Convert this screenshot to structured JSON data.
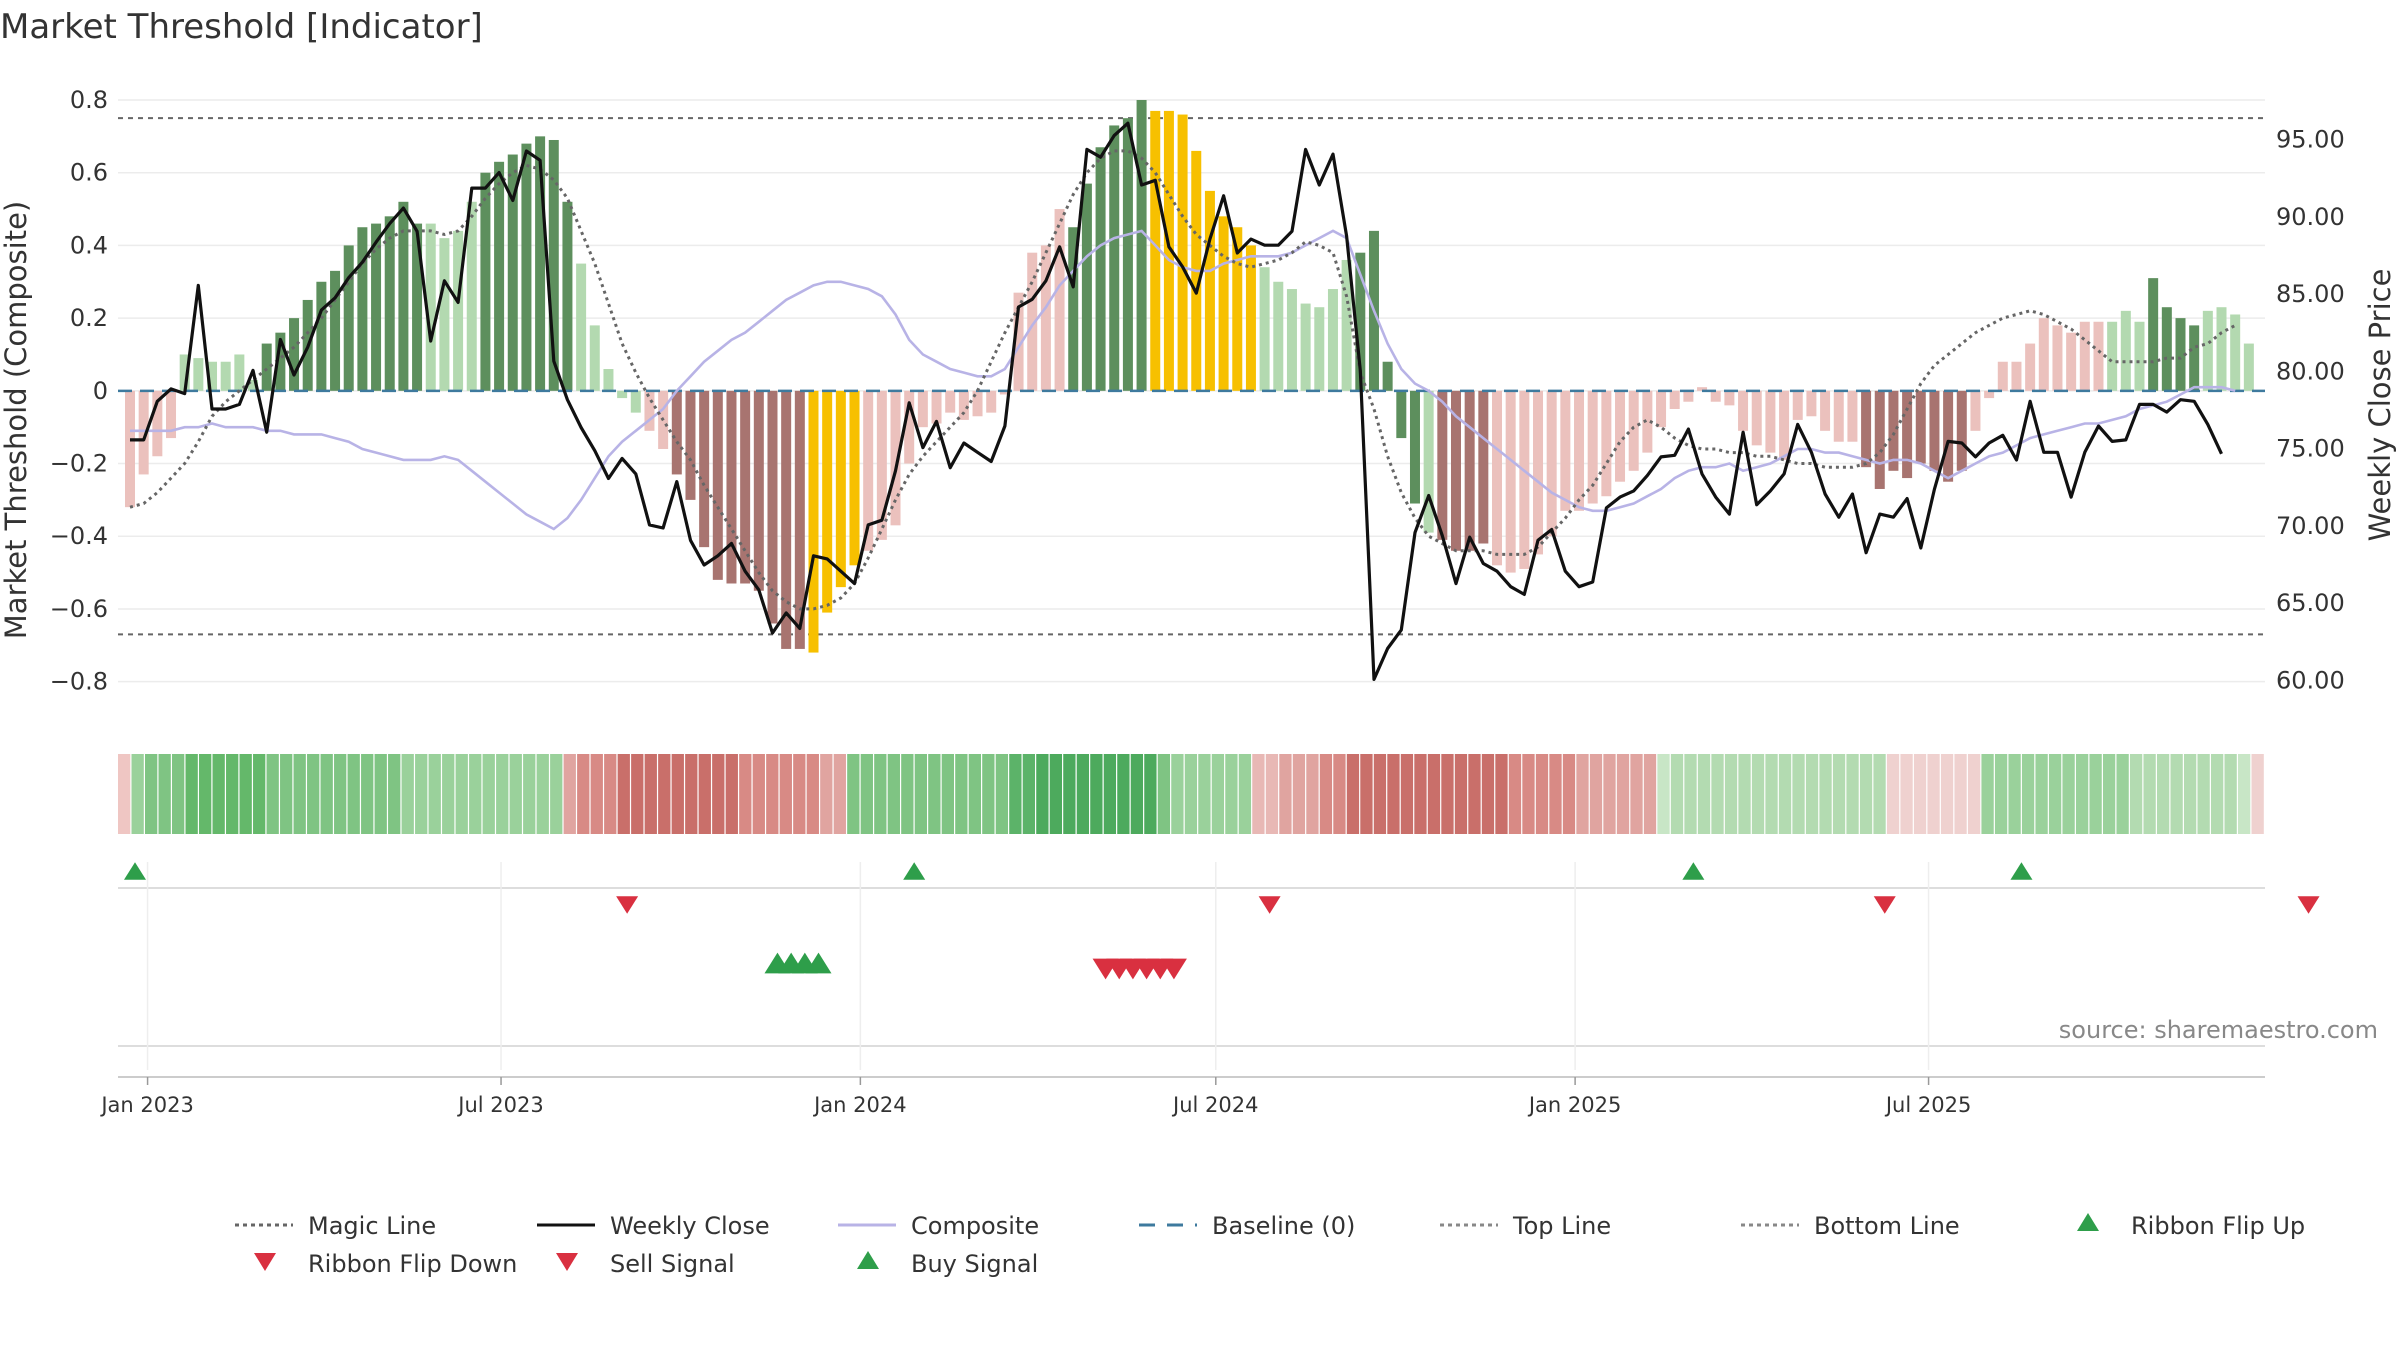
{
  "chart_data": {
    "type": "bar",
    "title": "Market Threshold [Indicator]",
    "ylabel_left": "Market Threshold (Composite)",
    "ylabel_right": "Weekly Close Price",
    "source": "source: sharemaestro.com",
    "start_date": "2022-12-23",
    "interval_days": 7,
    "ylim_left": [
      -0.9,
      0.8
    ],
    "ylim_right": [
      57.5,
      97.5
    ],
    "y_ticks_left": [
      "0.8",
      "0.6",
      "0.4",
      "0.2",
      "0",
      "−0.2",
      "−0.4",
      "−0.6",
      "−0.8"
    ],
    "y_ticks_right": [
      "95.00",
      "90.00",
      "85.00",
      "80.00",
      "75.00",
      "70.00",
      "65.00",
      "60.00"
    ],
    "x_ticks": [
      {
        "date": "2023-01-01",
        "label": "Jan 2023"
      },
      {
        "date": "2023-07-01",
        "label": "Jul 2023"
      },
      {
        "date": "2024-01-01",
        "label": "Jan 2024"
      },
      {
        "date": "2024-07-01",
        "label": "Jul 2024"
      },
      {
        "date": "2025-01-01",
        "label": "Jan 2025"
      },
      {
        "date": "2025-07-01",
        "label": "Jul 2025"
      }
    ],
    "top_line": 0.75,
    "bottom_line": -0.67,
    "baseline": 0,
    "colors": {
      "strong_green": "#5d8f5d",
      "light_green": "#b3d9b0",
      "strong_red": "#a87470",
      "light_red": "#ebc1bd",
      "gold": "#f7c000",
      "weekly_close": "#111111",
      "composite": "#b8b3e6",
      "magic_line": "#666666",
      "baseline": "#3e7a9e",
      "threshold": "#666666",
      "buy": "#2e9e4a",
      "sell": "#d93040"
    },
    "legend": [
      {
        "label": "Magic Line",
        "style": "dotted",
        "color": "#666666"
      },
      {
        "label": "Weekly Close",
        "style": "solid",
        "color": "#111111"
      },
      {
        "label": "Composite",
        "style": "solid",
        "color": "#b8b3e6"
      },
      {
        "label": "Baseline (0)",
        "style": "dashed",
        "color": "#3e7a9e"
      },
      {
        "label": "Top Line",
        "style": "dotted",
        "color": "#888888"
      },
      {
        "label": "Bottom Line",
        "style": "dotted",
        "color": "#888888"
      },
      {
        "label": "Ribbon Flip Up",
        "style": "triangle-up",
        "color": "#2e9e4a"
      },
      {
        "label": "Ribbon Flip Down",
        "style": "triangle-down",
        "color": "#d93040"
      },
      {
        "label": "Sell Signal",
        "style": "triangle-down",
        "color": "#d93040"
      },
      {
        "label": "Buy Signal",
        "style": "triangle-up",
        "color": "#2e9e4a"
      }
    ],
    "threshold_values": [
      -0.32,
      -0.23,
      -0.18,
      -0.13,
      0.1,
      0.09,
      0.08,
      0.08,
      0.1,
      0.03,
      0.13,
      0.16,
      0.2,
      0.25,
      0.3,
      0.33,
      0.4,
      0.45,
      0.46,
      0.48,
      0.52,
      0.46,
      0.46,
      0.42,
      0.44,
      0.52,
      0.6,
      0.63,
      0.65,
      0.68,
      0.7,
      0.69,
      0.52,
      0.35,
      0.18,
      0.06,
      -0.02,
      -0.06,
      -0.11,
      -0.16,
      -0.23,
      -0.3,
      -0.43,
      -0.52,
      -0.53,
      -0.53,
      -0.55,
      -0.64,
      -0.71,
      -0.71,
      -0.72,
      -0.61,
      -0.54,
      -0.48,
      -0.44,
      -0.41,
      -0.37,
      -0.2,
      -0.1,
      -0.09,
      -0.06,
      -0.08,
      -0.07,
      -0.06,
      -0.01,
      0.27,
      0.38,
      0.4,
      0.5,
      0.45,
      0.57,
      0.67,
      0.73,
      0.75,
      0.8,
      0.77,
      0.77,
      0.76,
      0.66,
      0.55,
      0.48,
      0.45,
      0.4,
      0.34,
      0.3,
      0.28,
      0.24,
      0.23,
      0.28,
      0.36,
      0.38,
      0.44,
      0.08,
      -0.13,
      -0.31,
      -0.39,
      -0.41,
      -0.44,
      -0.44,
      -0.42,
      -0.48,
      -0.5,
      -0.49,
      -0.45,
      -0.4,
      -0.33,
      -0.33,
      -0.31,
      -0.29,
      -0.25,
      -0.22,
      -0.17,
      -0.1,
      -0.05,
      -0.03,
      0.01,
      -0.03,
      -0.04,
      -0.11,
      -0.15,
      -0.17,
      -0.19,
      -0.08,
      -0.07,
      -0.11,
      -0.14,
      -0.14,
      -0.21,
      -0.27,
      -0.22,
      -0.24,
      -0.2,
      -0.22,
      -0.25,
      -0.22,
      -0.11,
      -0.02,
      0.08,
      0.08,
      0.13,
      0.2,
      0.18,
      0.16,
      0.19,
      0.19,
      0.19,
      0.22,
      0.19,
      0.31,
      0.23,
      0.2,
      0.18,
      0.22,
      0.23,
      0.21,
      0.13
    ],
    "threshold_colors": "RRRRLLLLLLGGGGGGGGGGGGLLLLGGGGGGGLLLLLRRRRRRRRRRRRYYYYRRRRRRRRRRRRRRRGGGGGGYYYYYYYYLLLLLLLGGGGGLRRRRRRRRRRRRRRRRRRRRRRRRRRRRRRRRRRRRRRRRRRRRRRRRRLLLGGGGLLLLGGGLLLLG",
    "weekly_close": [
      75.5,
      75.5,
      78,
      78.8,
      78.5,
      85.5,
      77.5,
      77.5,
      77.8,
      80,
      76,
      82,
      79.7,
      81.5,
      83.9,
      84.7,
      86,
      87,
      88.3,
      89.5,
      90.5,
      89,
      81.9,
      85.8,
      84.4,
      91.8,
      91.8,
      92.8,
      91,
      94.2,
      93.6,
      80.6,
      78.1,
      76.3,
      74.8,
      73,
      74.3,
      73.3,
      70,
      69.8,
      72.8,
      69,
      67.4,
      68,
      68.8,
      67,
      65.8,
      63,
      64.3,
      63.3,
      68,
      67.8,
      67,
      66.2,
      70,
      70.3,
      73.5,
      77.9,
      75,
      76.7,
      73.7,
      75.3,
      74.7,
      74.1,
      76.4,
      84.1,
      84.6,
      85.8,
      88,
      85.4,
      94.3,
      93.8,
      95.2,
      96,
      92,
      92.3,
      88,
      86.7,
      85,
      88.5,
      91.3,
      87.6,
      88.5,
      88.1,
      88.1,
      89,
      94.3,
      92,
      94,
      88.7,
      80,
      60,
      62,
      63.2,
      69.5,
      71.9,
      69.3,
      66.2,
      69.2,
      67.5,
      67,
      66,
      65.5,
      69,
      69.7,
      67,
      66,
      66.3,
      71.1,
      71.8,
      72.2,
      73.2,
      74.4,
      74.5,
      76.2,
      73.3,
      71.8,
      70.7,
      76,
      71.3,
      72.2,
      73.3,
      76.5,
      74.7,
      72,
      70.5,
      72,
      68.2,
      70.7,
      70.5,
      71.7,
      68.5,
      72.3,
      75.4,
      75.3,
      74.4,
      75.3,
      75.8,
      74.2,
      78,
      74.7,
      74.7,
      71.8,
      74.7,
      76.4,
      75.4,
      75.5,
      77.8,
      77.8,
      77.3,
      78.1,
      78,
      76.5,
      74.6
    ],
    "composite": [
      -0.11,
      -0.11,
      -0.11,
      -0.11,
      -0.1,
      -0.1,
      -0.09,
      -0.1,
      -0.1,
      -0.1,
      -0.11,
      -0.11,
      -0.12,
      -0.12,
      -0.12,
      -0.13,
      -0.14,
      -0.16,
      -0.17,
      -0.18,
      -0.19,
      -0.19,
      -0.19,
      -0.18,
      -0.19,
      -0.22,
      -0.25,
      -0.28,
      -0.31,
      -0.34,
      -0.36,
      -0.38,
      -0.35,
      -0.3,
      -0.24,
      -0.18,
      -0.14,
      -0.11,
      -0.08,
      -0.05,
      0.0,
      0.04,
      0.08,
      0.11,
      0.14,
      0.16,
      0.19,
      0.22,
      0.25,
      0.27,
      0.29,
      0.3,
      0.3,
      0.29,
      0.28,
      0.26,
      0.21,
      0.14,
      0.1,
      0.08,
      0.06,
      0.05,
      0.04,
      0.04,
      0.06,
      0.12,
      0.18,
      0.23,
      0.29,
      0.33,
      0.37,
      0.4,
      0.42,
      0.43,
      0.44,
      0.4,
      0.36,
      0.34,
      0.33,
      0.33,
      0.35,
      0.36,
      0.37,
      0.37,
      0.37,
      0.38,
      0.4,
      0.42,
      0.44,
      0.42,
      0.32,
      0.22,
      0.13,
      0.06,
      0.02,
      0.0,
      -0.03,
      -0.07,
      -0.1,
      -0.13,
      -0.16,
      -0.19,
      -0.22,
      -0.25,
      -0.28,
      -0.3,
      -0.32,
      -0.33,
      -0.33,
      -0.32,
      -0.31,
      -0.29,
      -0.27,
      -0.24,
      -0.22,
      -0.21,
      -0.21,
      -0.2,
      -0.22,
      -0.21,
      -0.2,
      -0.18,
      -0.16,
      -0.16,
      -0.17,
      -0.17,
      -0.18,
      -0.19,
      -0.2,
      -0.19,
      -0.19,
      -0.2,
      -0.22,
      -0.24,
      -0.22,
      -0.2,
      -0.18,
      -0.17,
      -0.15,
      -0.13,
      -0.12,
      -0.11,
      -0.1,
      -0.09,
      -0.09,
      -0.08,
      -0.07,
      -0.05,
      -0.04,
      -0.03,
      -0.01,
      0.01,
      0.01,
      0.01,
      0.0
    ],
    "magic_line": [
      -0.32,
      -0.31,
      -0.28,
      -0.24,
      -0.2,
      -0.14,
      -0.07,
      -0.03,
      0.0,
      0.03,
      0.06,
      0.09,
      0.12,
      0.16,
      0.2,
      0.25,
      0.3,
      0.35,
      0.39,
      0.42,
      0.44,
      0.44,
      0.44,
      0.43,
      0.44,
      0.48,
      0.53,
      0.57,
      0.6,
      0.62,
      0.61,
      0.58,
      0.53,
      0.44,
      0.35,
      0.24,
      0.13,
      0.05,
      -0.02,
      -0.08,
      -0.14,
      -0.19,
      -0.26,
      -0.32,
      -0.38,
      -0.44,
      -0.5,
      -0.55,
      -0.58,
      -0.6,
      -0.6,
      -0.59,
      -0.57,
      -0.53,
      -0.46,
      -0.38,
      -0.3,
      -0.23,
      -0.18,
      -0.14,
      -0.1,
      -0.06,
      0.0,
      0.08,
      0.16,
      0.23,
      0.3,
      0.38,
      0.46,
      0.54,
      0.6,
      0.64,
      0.66,
      0.66,
      0.64,
      0.6,
      0.54,
      0.48,
      0.43,
      0.4,
      0.37,
      0.35,
      0.34,
      0.35,
      0.36,
      0.38,
      0.41,
      0.4,
      0.38,
      0.26,
      0.05,
      -0.05,
      -0.18,
      -0.28,
      -0.35,
      -0.4,
      -0.42,
      -0.44,
      -0.44,
      -0.44,
      -0.45,
      -0.45,
      -0.45,
      -0.43,
      -0.39,
      -0.35,
      -0.3,
      -0.26,
      -0.2,
      -0.14,
      -0.1,
      -0.08,
      -0.1,
      -0.13,
      -0.15,
      -0.16,
      -0.16,
      -0.17,
      -0.17,
      -0.18,
      -0.18,
      -0.19,
      -0.2,
      -0.2,
      -0.21,
      -0.21,
      -0.21,
      -0.2,
      -0.17,
      -0.12,
      -0.05,
      0.02,
      0.07,
      0.1,
      0.13,
      0.16,
      0.18,
      0.2,
      0.21,
      0.22,
      0.21,
      0.19,
      0.17,
      0.14,
      0.11,
      0.08,
      0.08,
      0.08,
      0.08,
      0.09,
      0.09,
      0.12,
      0.13,
      0.16,
      0.18
    ],
    "ribbon_colors": [
      "#efc6c3",
      "#9ad19b",
      "#7fc483",
      "#7fc483",
      "#7fc483",
      "#64b86a",
      "#64b86a",
      "#64b86a",
      "#64b86a",
      "#64b86a",
      "#64b86a",
      "#7fc483",
      "#7fc483",
      "#7fc483",
      "#7fc483",
      "#7fc483",
      "#7fc483",
      "#7fc483",
      "#7fc483",
      "#7fc483",
      "#7fc483",
      "#9ad19b",
      "#9ad19b",
      "#9ad19b",
      "#9ad19b",
      "#9ad19b",
      "#9ad19b",
      "#9ad19b",
      "#9ad19b",
      "#9ad19b",
      "#9ad19b",
      "#9ad19b",
      "#9ad19b",
      "#e0a4a0",
      "#d88a85",
      "#d88a85",
      "#d88a85",
      "#c96f6a",
      "#c96f6a",
      "#c96f6a",
      "#c96f6a",
      "#c96f6a",
      "#c96f6a",
      "#c96f6a",
      "#c96f6a",
      "#c96f6a",
      "#d88a85",
      "#d88a85",
      "#d88a85",
      "#d88a85",
      "#d88a85",
      "#d88a85",
      "#e0a4a0",
      "#e0a4a0",
      "#7fc483",
      "#7fc483",
      "#7fc483",
      "#7fc483",
      "#7fc483",
      "#7fc483",
      "#7fc483",
      "#7fc483",
      "#7fc483",
      "#7fc483",
      "#7fc483",
      "#7fc483",
      "#5cb369",
      "#5cb369",
      "#4daa5d",
      "#4daa5d",
      "#4daa5d",
      "#4daa5d",
      "#4daa5d",
      "#4daa5d",
      "#4daa5d",
      "#4daa5d",
      "#4daa5d",
      "#7fc483",
      "#9ad19b",
      "#9ad19b",
      "#9ad19b",
      "#9ad19b",
      "#9ad19b",
      "#9ad19b",
      "#e8b8b5",
      "#e8b8b5",
      "#e0a4a0",
      "#e0a4a0",
      "#e0a4a0",
      "#d88a85",
      "#d88a85",
      "#c96f6a",
      "#c96f6a",
      "#c96f6a",
      "#c96f6a",
      "#c96f6a",
      "#c96f6a",
      "#c96f6a",
      "#c96f6a",
      "#c96f6a",
      "#c96f6a",
      "#c96f6a",
      "#c96f6a",
      "#d88a85",
      "#d88a85",
      "#d88a85",
      "#d88a85",
      "#d88a85",
      "#e0a4a0",
      "#e0a4a0",
      "#e0a4a0",
      "#e0a4a0",
      "#e0a4a0",
      "#e0a4a0",
      "#c8e6c6",
      "#b3dbb1",
      "#b3dbb1",
      "#b3dbb1",
      "#b3dbb1",
      "#b3dbb1",
      "#b3dbb1",
      "#b3dbb1",
      "#b3dbb1",
      "#b3dbb1",
      "#b3dbb1",
      "#b3dbb1",
      "#b3dbb1",
      "#b3dbb1",
      "#b3dbb1",
      "#b3dbb1",
      "#b3dbb1",
      "#efd1cf",
      "#efd1cf",
      "#efd1cf",
      "#efd1cf",
      "#efd1cf",
      "#efd1cf",
      "#efd1cf",
      "#9ad19b",
      "#9ad19b",
      "#9ad19b",
      "#9ad19b",
      "#9ad19b",
      "#9ad19b",
      "#9ad19b",
      "#9ad19b",
      "#9ad19b",
      "#9ad19b",
      "#9ad19b",
      "#b3dbb1",
      "#b3dbb1",
      "#b3dbb1",
      "#b3dbb1",
      "#b3dbb1",
      "#b3dbb1",
      "#b3dbb1",
      "#b3dbb1",
      "#c8e6c6",
      "#efd1cf"
    ],
    "ribbon_flip_up_weeks": [
      0,
      57,
      114,
      138
    ],
    "ribbon_flip_down_weeks": [
      36,
      83,
      128,
      159
    ],
    "buy_signal_weeks": [
      47,
      48,
      49,
      50
    ],
    "sell_signal_weeks": [
      71,
      72,
      73,
      74,
      75,
      76
    ]
  }
}
